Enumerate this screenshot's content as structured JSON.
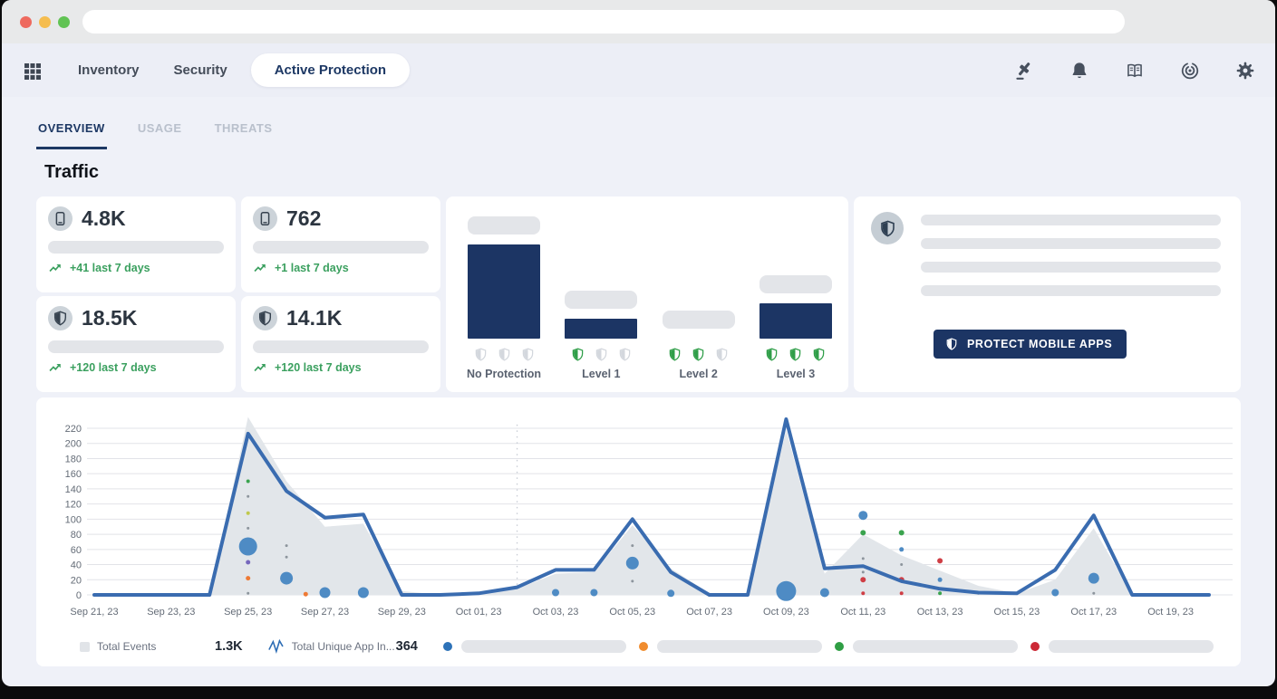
{
  "window": {
    "address_value": "",
    "buttons": [
      "close",
      "minimize",
      "zoom"
    ]
  },
  "nav": {
    "items": [
      {
        "label": "Inventory",
        "active": false
      },
      {
        "label": "Security",
        "active": false
      },
      {
        "label": "Active Protection",
        "active": true
      }
    ],
    "icons": [
      {
        "name": "gavel"
      },
      {
        "name": "bell"
      },
      {
        "name": "book"
      },
      {
        "name": "radar"
      },
      {
        "name": "gear"
      }
    ]
  },
  "tabs": [
    {
      "label": "OVERVIEW",
      "active": true
    },
    {
      "label": "USAGE",
      "active": false
    },
    {
      "label": "THREATS",
      "active": false
    }
  ],
  "section_title": "Traffic",
  "stat_cards": [
    {
      "icon": "phone",
      "value": "4.8K",
      "delta": "+41 last 7 days"
    },
    {
      "icon": "phone",
      "value": "762",
      "delta": "+1 last 7 days"
    },
    {
      "icon": "shield",
      "value": "18.5K",
      "delta": "+120 last 7 days"
    },
    {
      "icon": "shield",
      "value": "14.1K",
      "delta": "+120 last 7 days"
    }
  ],
  "protection_levels": {
    "groups": [
      {
        "label": "No Protection",
        "bar": 104,
        "shields_active": 0
      },
      {
        "label": "Level 1",
        "bar": 22,
        "shields_active": 1
      },
      {
        "label": "Level 2",
        "bar": 0,
        "shields_active": 2
      },
      {
        "label": "Level 3",
        "bar": 39,
        "shields_active": 3
      }
    ],
    "shields_per_group": 3,
    "bar_color": "#1c3564",
    "shield_active_color": "#2f9e48",
    "shield_inactive_color": "#d3d7dd"
  },
  "promo": {
    "skeleton_lines": 4,
    "button_label": "PROTECT MOBILE APPS"
  },
  "chart_data": {
    "type": "line+area+scatter",
    "num_days": 30,
    "x_tick_labels": [
      "Sep 21, 23",
      "Sep 23, 23",
      "Sep 25, 23",
      "Sep 27, 23",
      "Sep 29, 23",
      "Oct 01, 23",
      "Oct 03, 23",
      "Oct 05, 23",
      "Oct 07, 23",
      "Oct 09, 23",
      "Oct 11, 23",
      "Oct 13, 23",
      "Oct 15, 23",
      "Oct 17, 23",
      "Oct 19, 23"
    ],
    "x_tick_step": 2,
    "yticks": [
      0,
      20,
      40,
      60,
      80,
      100,
      120,
      140,
      160,
      180,
      200,
      220
    ],
    "ylim": [
      0,
      232
    ],
    "event_marker_day": 11,
    "series": [
      {
        "name": "Total Events",
        "style": "area",
        "color": "#e2e6ea",
        "values": [
          0,
          0,
          0,
          0,
          235,
          150,
          90,
          94,
          5,
          0,
          2,
          8,
          28,
          30,
          92,
          35,
          2,
          0,
          218,
          28,
          80,
          52,
          32,
          12,
          2,
          20,
          88,
          0,
          0,
          0
        ]
      },
      {
        "name": "Total Unique App Installs",
        "style": "line",
        "color": "#3a6cb0",
        "values": [
          0,
          0,
          0,
          0,
          213,
          137,
          102,
          106,
          0,
          0,
          2,
          10,
          33,
          33,
          100,
          30,
          0,
          0,
          232,
          35,
          38,
          18,
          8,
          3,
          2,
          33,
          105,
          0,
          0,
          0
        ]
      }
    ],
    "scatter": [
      [
        4,
        150,
        2,
        "green"
      ],
      [
        4,
        130,
        1.5,
        "gray"
      ],
      [
        4,
        108,
        2,
        "yellow"
      ],
      [
        4,
        88,
        1.5,
        "gray"
      ],
      [
        4,
        64,
        10,
        "blue"
      ],
      [
        4,
        43,
        2.5,
        "purple"
      ],
      [
        4,
        22,
        2.5,
        "orange"
      ],
      [
        4,
        2,
        1.5,
        "gray"
      ],
      [
        5,
        65,
        1.5,
        "gray"
      ],
      [
        5,
        50,
        1.5,
        "gray"
      ],
      [
        5,
        22,
        7,
        "blue"
      ],
      [
        5.5,
        1,
        2.5,
        "orange"
      ],
      [
        6,
        3,
        6,
        "blue"
      ],
      [
        7,
        3,
        6,
        "blue"
      ],
      [
        12,
        3,
        4,
        "blue"
      ],
      [
        13,
        3,
        4,
        "blue"
      ],
      [
        14,
        65,
        1.5,
        "gray"
      ],
      [
        14,
        42,
        7,
        "blue"
      ],
      [
        14,
        18,
        1.5,
        "gray"
      ],
      [
        15,
        2,
        4,
        "blue"
      ],
      [
        18,
        5,
        11,
        "blue"
      ],
      [
        19,
        3,
        5,
        "blue"
      ],
      [
        20,
        105,
        5,
        "blue"
      ],
      [
        20,
        82,
        3,
        "green"
      ],
      [
        20,
        48,
        1.5,
        "gray"
      ],
      [
        20,
        30,
        1.5,
        "gray"
      ],
      [
        20,
        20,
        3,
        "red"
      ],
      [
        20,
        2,
        2,
        "red"
      ],
      [
        21,
        82,
        3,
        "green"
      ],
      [
        21,
        60,
        2.5,
        "blue"
      ],
      [
        21,
        40,
        1.5,
        "gray"
      ],
      [
        21,
        20,
        3,
        "red"
      ],
      [
        21,
        2,
        2,
        "red"
      ],
      [
        22,
        45,
        3,
        "red"
      ],
      [
        22,
        20,
        2.5,
        "blue"
      ],
      [
        22,
        2,
        2,
        "green"
      ],
      [
        23,
        2,
        1.5,
        "gray"
      ],
      [
        25,
        3,
        4,
        "blue"
      ],
      [
        26,
        22,
        6,
        "blue"
      ],
      [
        26,
        2,
        1.5,
        "gray"
      ]
    ],
    "scatter_colors": {
      "blue": "#4e8bc4",
      "green": "#3aa34e",
      "orange": "#ee7a35",
      "red": "#cf3e45",
      "purple": "#7668bd",
      "yellow": "#c0c94d",
      "gray": "#8d959d"
    }
  },
  "legend": {
    "items": [
      {
        "swatch": "square",
        "color": "#e1e4e8",
        "label": "Total Events",
        "value": "1.3K"
      },
      {
        "swatch": "line",
        "color": "#2d6db5",
        "label": "Total Unique App In...",
        "value": "364"
      },
      {
        "swatch": "dot",
        "color": "#2d72b8",
        "skeleton": true
      },
      {
        "swatch": "dot",
        "color": "#f08c2e",
        "skeleton": true
      },
      {
        "swatch": "dot",
        "color": "#2f9e44",
        "skeleton": true
      },
      {
        "swatch": "dot",
        "color": "#cc2936",
        "skeleton": true
      }
    ]
  },
  "colors": {
    "navy": "#1d3864",
    "green_delta": "#3ba05f",
    "line_blue": "#3a6cb0",
    "area_gray": "#e2e6ea",
    "skeleton": "#e3e5e9",
    "page_bg": "#eff1f8"
  }
}
